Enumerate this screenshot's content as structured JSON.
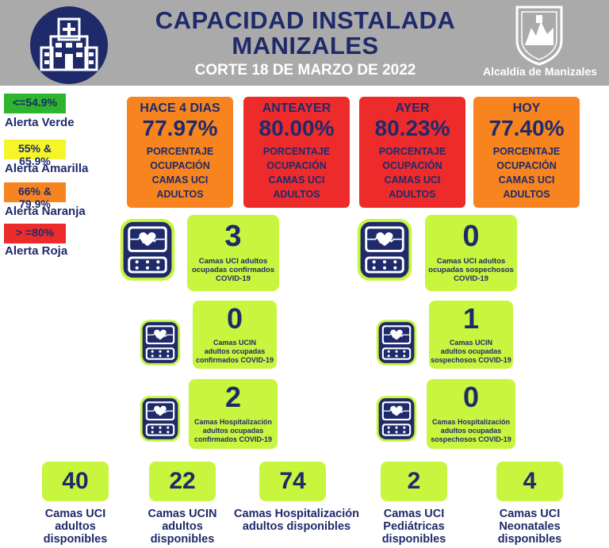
{
  "header": {
    "title_line1": "CAPACIDAD INSTALADA",
    "title_line2": "MANIZALES",
    "subtitle": "CORTE 18 DE MARZO DE 2022",
    "logo_text": "Alcaldía de Manizales",
    "hospital_icon": "hospital-building-icon",
    "shield_icon": "city-shield-icon"
  },
  "colors": {
    "navy": "#1f2a6b",
    "header_gray": "#aaaaaa",
    "green_alert": "#2db52d",
    "yellow_alert": "#f5f52a",
    "orange_alert": "#f7841e",
    "red_alert": "#ee2b2b",
    "lime_box": "#c8f53d"
  },
  "legend": [
    {
      "range": "<=54.9%",
      "label": "Alerta Verde",
      "color": "#2db52d"
    },
    {
      "range": "55% & 65.9%",
      "label": "Alerta Amarilla",
      "color": "#f5f52a"
    },
    {
      "range": "66% & 79.9%",
      "label": "Alerta Naranja",
      "color": "#f7841e"
    },
    {
      "range": "> =80%",
      "label": "Alerta Roja",
      "color": "#ee2b2b"
    }
  ],
  "occupancy": [
    {
      "day": "HACE 4 DIAS",
      "value": "77.97%",
      "desc1": "PORCENTAJE",
      "desc2": "OCUPACIÓN",
      "desc3": "CAMAS UCI",
      "desc4": "ADULTOS",
      "level": "orange"
    },
    {
      "day": "ANTEAYER",
      "value": "80.00%",
      "desc1": "PORCENTAJE",
      "desc2": "OCUPACIÓN",
      "desc3": "CAMAS UCI",
      "desc4": "ADULTOS",
      "level": "red"
    },
    {
      "day": "AYER",
      "value": "80.23%",
      "desc1": "PORCENTAJE",
      "desc2": "OCUPACIÓN",
      "desc3": "CAMAS UCI",
      "desc4": "ADULTOS",
      "level": "red"
    },
    {
      "day": "HOY",
      "value": "77.40%",
      "desc1": "PORCENTAJE",
      "desc2": "OCUPACIÓN",
      "desc3": "CAMAS UCI",
      "desc4": "ADULTOS",
      "level": "orange"
    }
  ],
  "monitor_icon": "heart-monitor-icon",
  "occupied": {
    "uci_confirmed": {
      "value": "3",
      "l1": "Camas UCI adultos",
      "l2": "ocupadas confirmados",
      "l3": "COVID-19"
    },
    "uci_suspected": {
      "value": "0",
      "l1": "Camas UCI adultos",
      "l2": "ocupadas sospechosos",
      "l3": "COVID-19"
    },
    "ucin_confirmed": {
      "value": "0",
      "l1": "Camas  UCIN",
      "l2": "adultos ocupadas",
      "l3": "confirmados COVID-19"
    },
    "ucin_suspected": {
      "value": "1",
      "l1": "Camas  UCIN",
      "l2": "adultos ocupadas",
      "l3": "sospechosos COVID-19"
    },
    "hosp_confirmed": {
      "value": "2",
      "l1": "Camas  Hospitalización",
      "l2": "adultos ocupadas",
      "l3": "confirmados COVID-19"
    },
    "hosp_suspected": {
      "value": "0",
      "l1": "Camas Hospitalización",
      "l2": "adultos ocupadas",
      "l3": "sospechosos COVID-19"
    }
  },
  "available": [
    {
      "value": "40",
      "l1": "Camas UCI",
      "l2": "adultos",
      "l3": "disponibles"
    },
    {
      "value": "22",
      "l1": "Camas UCIN",
      "l2": "adultos",
      "l3": "disponibles"
    },
    {
      "value": "74",
      "l1": "Camas  Hospitalización",
      "l2": "adultos disponibles",
      "l3": ""
    },
    {
      "value": "2",
      "l1": "Camas  UCI",
      "l2": "Pediátricas",
      "l3": "disponibles"
    },
    {
      "value": "4",
      "l1": "Camas  UCI",
      "l2": "Neonatales",
      "l3": "disponibles"
    }
  ]
}
